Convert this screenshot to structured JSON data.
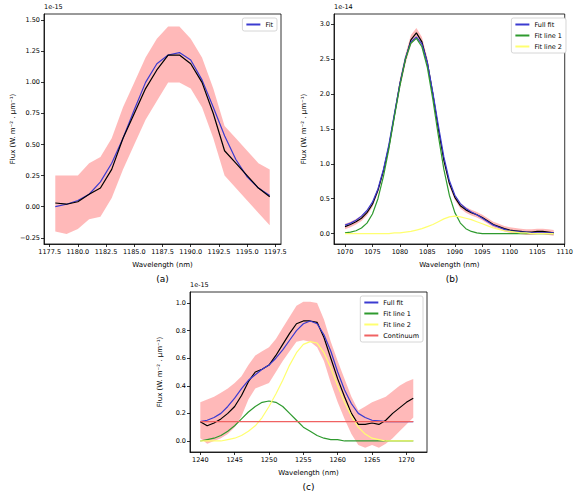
{
  "chart_data": [
    {
      "type": "line",
      "caption": "(a)",
      "y_offset_label": "1e-15",
      "x_label": "Wavelength (nm)",
      "y_label": "Flux (W. m⁻² . μm⁻¹)",
      "x": [
        1178,
        1179,
        1180,
        1181,
        1182,
        1183,
        1184,
        1185,
        1186,
        1187,
        1188,
        1189,
        1190,
        1191,
        1192,
        1193,
        1194,
        1195,
        1196,
        1197
      ],
      "series": [
        {
          "name": "Fit",
          "color": "#3b3bd0",
          "values": [
            0.0,
            0.02,
            0.05,
            0.1,
            0.2,
            0.35,
            0.55,
            0.78,
            1.0,
            1.15,
            1.22,
            1.24,
            1.18,
            1.02,
            0.8,
            0.57,
            0.38,
            0.24,
            0.15,
            0.09
          ]
        },
        {
          "color": "#000000",
          "values": [
            0.03,
            0.02,
            0.04,
            0.1,
            0.15,
            0.3,
            0.55,
            0.75,
            0.95,
            1.1,
            1.22,
            1.22,
            1.15,
            1.0,
            0.75,
            0.45,
            0.35,
            0.25,
            0.15,
            0.08
          ]
        }
      ],
      "error_band": {
        "color": "#ff8a8a",
        "upper": [
          0.25,
          0.25,
          0.25,
          0.35,
          0.4,
          0.55,
          0.8,
          1.0,
          1.2,
          1.35,
          1.45,
          1.45,
          1.35,
          1.2,
          0.95,
          0.65,
          0.55,
          0.45,
          0.35,
          0.3
        ],
        "lower": [
          -0.2,
          -0.22,
          -0.18,
          -0.1,
          -0.08,
          0.07,
          0.3,
          0.5,
          0.7,
          0.85,
          1.0,
          1.0,
          0.95,
          0.8,
          0.55,
          0.25,
          0.15,
          0.05,
          -0.05,
          -0.15
        ]
      },
      "xlim": [
        1177,
        1198
      ],
      "xticks": [
        1177.5,
        {
          "value": 1180,
          "label": "1180.0"
        },
        1182.5,
        {
          "value": 1185,
          "label": "1185.0"
        },
        1187.5,
        {
          "value": 1190,
          "label": "1190.0"
        },
        1192.5,
        {
          "value": 1195,
          "label": "1195.0"
        },
        1197.5
      ],
      "ylim": [
        -0.3,
        1.55
      ],
      "yticks": [
        {
          "value": -0.25,
          "label": "−0.25"
        },
        {
          "value": 0,
          "label": "0.00"
        },
        0.25,
        {
          "value": 0.5,
          "label": "0.50"
        },
        0.75,
        {
          "value": 1,
          "label": "1.00"
        },
        1.25,
        {
          "value": 1.5,
          "label": "1.50"
        }
      ],
      "grid": false,
      "legend": "upper right"
    },
    {
      "type": "line",
      "caption": "(b)",
      "y_offset_label": "1e-14",
      "x_label": "Wavelength (nm)",
      "y_label": "Flux (W. m⁻² . μm⁻¹)",
      "x": [
        1070,
        1071,
        1072,
        1073,
        1074,
        1075,
        1076,
        1077,
        1078,
        1079,
        1080,
        1081,
        1082,
        1083,
        1084,
        1085,
        1086,
        1087,
        1088,
        1089,
        1090,
        1091,
        1092,
        1093,
        1094,
        1095,
        1096,
        1097,
        1098,
        1099,
        1100,
        1101,
        1102,
        1103,
        1104,
        1105,
        1106,
        1107,
        1108
      ],
      "series": [
        {
          "color": "#000000",
          "values": [
            0.1,
            0.13,
            0.17,
            0.22,
            0.3,
            0.42,
            0.62,
            0.9,
            1.25,
            1.7,
            2.15,
            2.5,
            2.78,
            2.88,
            2.75,
            2.45,
            2.0,
            1.5,
            1.05,
            0.72,
            0.52,
            0.4,
            0.34,
            0.3,
            0.27,
            0.23,
            0.18,
            0.13,
            0.1,
            0.07,
            0.05,
            0.04,
            0.03,
            0.02,
            0.02,
            0.03,
            0.03,
            0.02,
            0.01
          ]
        },
        {
          "name": "Full fit",
          "color": "#3b3bd0",
          "values": [
            0.12,
            0.15,
            0.19,
            0.25,
            0.33,
            0.45,
            0.64,
            0.92,
            1.28,
            1.72,
            2.15,
            2.52,
            2.75,
            2.82,
            2.72,
            2.45,
            2.02,
            1.55,
            1.1,
            0.76,
            0.55,
            0.43,
            0.36,
            0.31,
            0.27,
            0.22,
            0.17,
            0.12,
            0.09,
            0.06,
            0.04,
            0.03,
            0.02,
            0.02,
            0.01,
            0.01,
            0.01,
            0.01,
            0.01
          ]
        },
        {
          "name": "Fit line 1",
          "color": "#2e9a2e",
          "values": [
            0.01,
            0.02,
            0.04,
            0.08,
            0.15,
            0.28,
            0.5,
            0.82,
            1.22,
            1.68,
            2.12,
            2.5,
            2.73,
            2.8,
            2.68,
            2.38,
            1.92,
            1.4,
            0.92,
            0.55,
            0.3,
            0.15,
            0.07,
            0.03,
            0.01,
            0,
            0,
            0,
            0,
            0,
            0,
            0,
            0,
            0,
            0,
            0,
            0,
            0,
            0
          ]
        },
        {
          "name": "Fit line 2",
          "color": "#ffff70",
          "values": [
            0,
            0,
            0,
            0,
            0,
            0,
            0,
            0,
            0,
            0.01,
            0.01,
            0.02,
            0.03,
            0.05,
            0.07,
            0.1,
            0.13,
            0.17,
            0.21,
            0.24,
            0.25,
            0.24,
            0.22,
            0.2,
            0.17,
            0.14,
            0.11,
            0.08,
            0.06,
            0.04,
            0.03,
            0.02,
            0.01,
            0.01,
            0,
            0,
            0,
            0,
            0
          ]
        }
      ],
      "error_band": {
        "color": "#ff8a8a",
        "upper": [
          0.14,
          0.17,
          0.21,
          0.26,
          0.34,
          0.46,
          0.66,
          0.94,
          1.29,
          1.74,
          2.22,
          2.57,
          2.85,
          2.95,
          2.82,
          2.52,
          2.04,
          1.54,
          1.09,
          0.76,
          0.56,
          0.44,
          0.38,
          0.34,
          0.31,
          0.27,
          0.22,
          0.17,
          0.14,
          0.11,
          0.09,
          0.08,
          0.07,
          0.06,
          0.06,
          0.07,
          0.07,
          0.06,
          0.05
        ],
        "lower": [
          0.06,
          0.09,
          0.13,
          0.18,
          0.26,
          0.38,
          0.58,
          0.86,
          1.21,
          1.66,
          2.08,
          2.43,
          2.71,
          2.81,
          2.68,
          2.38,
          1.96,
          1.46,
          1.01,
          0.68,
          0.48,
          0.36,
          0.3,
          0.26,
          0.23,
          0.19,
          0.14,
          0.09,
          0.06,
          0.03,
          0.01,
          0,
          -0.01,
          -0.02,
          -0.02,
          -0.01,
          -0.01,
          -0.02,
          -0.03
        ]
      },
      "xlim": [
        1068,
        1110
      ],
      "xticks": [
        1070,
        1075,
        1080,
        1085,
        1090,
        1095,
        1100,
        1105,
        1110
      ],
      "ylim": [
        -0.15,
        3.15
      ],
      "yticks": [
        {
          "value": 0,
          "label": "0.0"
        },
        0.5,
        {
          "value": 1,
          "label": "1.0"
        },
        1.5,
        {
          "value": 2,
          "label": "2.0"
        },
        2.5,
        {
          "value": 3,
          "label": "3.0"
        }
      ],
      "grid": false,
      "legend": "upper right"
    },
    {
      "type": "line",
      "caption": "(c)",
      "y_offset_label": "1e-15",
      "x_label": "Wavelength (nm)",
      "y_label": "Flux (W. m⁻² . μm⁻¹)",
      "x": [
        1240,
        1241,
        1242,
        1243,
        1244,
        1245,
        1246,
        1247,
        1248,
        1249,
        1250,
        1251,
        1252,
        1253,
        1254,
        1255,
        1256,
        1257,
        1258,
        1259,
        1260,
        1261,
        1262,
        1263,
        1264,
        1265,
        1266,
        1267,
        1268,
        1269,
        1270,
        1271
      ],
      "series": [
        {
          "color": "#000000",
          "values": [
            0.14,
            0.11,
            0.13,
            0.16,
            0.2,
            0.25,
            0.33,
            0.43,
            0.5,
            0.52,
            0.55,
            0.62,
            0.7,
            0.78,
            0.85,
            0.87,
            0.87,
            0.86,
            0.75,
            0.6,
            0.45,
            0.32,
            0.2,
            0.12,
            0.12,
            0.13,
            0.12,
            0.15,
            0.2,
            0.24,
            0.28,
            0.31
          ]
        },
        {
          "name": "Full fit",
          "color": "#3b3bd0",
          "values": [
            0.14,
            0.15,
            0.17,
            0.2,
            0.25,
            0.31,
            0.38,
            0.44,
            0.48,
            0.52,
            0.55,
            0.6,
            0.66,
            0.73,
            0.8,
            0.85,
            0.87,
            0.85,
            0.77,
            0.65,
            0.5,
            0.37,
            0.27,
            0.2,
            0.17,
            0.15,
            0.145,
            0.14,
            0.14,
            0.14,
            0.14,
            0.14
          ]
        },
        {
          "name": "Fit line 1",
          "color": "#2e9a2e",
          "values": [
            0,
            0.01,
            0.02,
            0.04,
            0.07,
            0.11,
            0.16,
            0.21,
            0.25,
            0.28,
            0.29,
            0.28,
            0.25,
            0.2,
            0.15,
            0.1,
            0.07,
            0.04,
            0.02,
            0.01,
            0.01,
            0,
            0,
            0,
            0,
            0,
            0,
            0,
            0,
            0,
            0,
            0
          ]
        },
        {
          "name": "Fit line 2",
          "color": "#ffff70",
          "values": [
            0,
            0,
            0,
            0,
            0.01,
            0.02,
            0.04,
            0.07,
            0.11,
            0.17,
            0.25,
            0.34,
            0.44,
            0.55,
            0.64,
            0.7,
            0.72,
            0.71,
            0.64,
            0.53,
            0.4,
            0.28,
            0.18,
            0.1,
            0.05,
            0.02,
            0.01,
            0,
            0,
            0,
            0,
            0
          ]
        },
        {
          "name": "Continuum",
          "color": "#f06262",
          "values": [
            0.14,
            0.14,
            0.14,
            0.14,
            0.14,
            0.14,
            0.14,
            0.14,
            0.14,
            0.14,
            0.14,
            0.14,
            0.14,
            0.14,
            0.14,
            0.14,
            0.14,
            0.14,
            0.14,
            0.14,
            0.14,
            0.14,
            0.14,
            0.14,
            0.14,
            0.14,
            0.14,
            0.14,
            0.14,
            0.14,
            0.14,
            0.14
          ]
        }
      ],
      "error_band": {
        "color": "#ff8a8a",
        "upper": [
          0.28,
          0.3,
          0.32,
          0.35,
          0.38,
          0.42,
          0.47,
          0.55,
          0.62,
          0.65,
          0.68,
          0.74,
          0.82,
          0.9,
          0.98,
          1.01,
          1.01,
          1.0,
          0.88,
          0.72,
          0.58,
          0.45,
          0.32,
          0.22,
          0.25,
          0.28,
          0.3,
          0.32,
          0.36,
          0.4,
          0.43,
          0.45
        ],
        "lower": [
          0.02,
          -0.02,
          0,
          0.02,
          0.05,
          0.1,
          0.18,
          0.3,
          0.38,
          0.4,
          0.42,
          0.5,
          0.58,
          0.65,
          0.72,
          0.73,
          0.72,
          0.68,
          0.58,
          0.42,
          0.28,
          0.16,
          0.05,
          -0.03,
          -0.05,
          -0.03,
          -0.05,
          -0.02,
          0.02,
          0.07,
          0.12,
          0.17
        ]
      },
      "xlim": [
        1238.5,
        1273
      ],
      "xticks": [
        1240,
        1245,
        1250,
        1255,
        1260,
        1265,
        1270
      ],
      "ylim": [
        -0.08,
        1.08
      ],
      "yticks": [
        {
          "value": 0,
          "label": "0.0"
        },
        0.2,
        0.4,
        0.6,
        0.8,
        {
          "value": 1,
          "label": "1.0"
        }
      ],
      "grid": false,
      "legend": "upper right"
    }
  ]
}
